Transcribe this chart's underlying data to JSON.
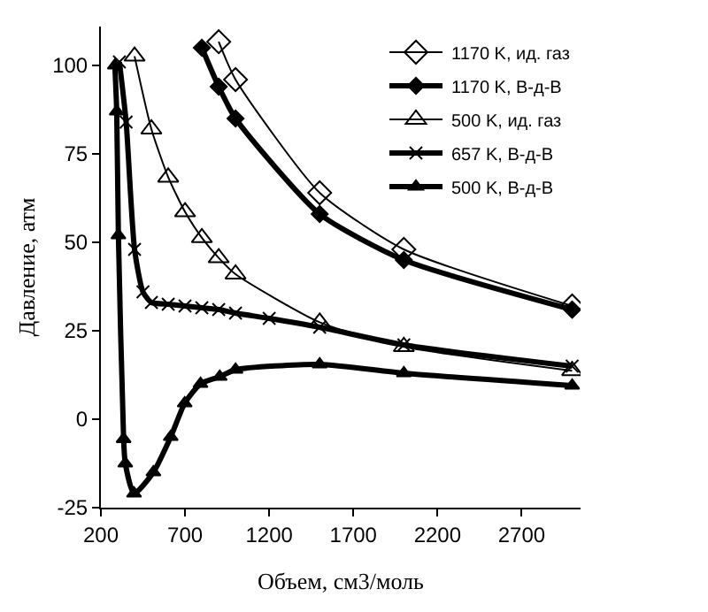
{
  "chart_data": {
    "type": "line",
    "xlabel": "Объем, см3/моль",
    "ylabel": "Давление, атм",
    "xlim": [
      200,
      3050
    ],
    "ylim": [
      -25,
      111
    ],
    "xticks": [
      200,
      700,
      1200,
      1700,
      2200,
      2700
    ],
    "yticks": [
      -25,
      0,
      25,
      50,
      75,
      100
    ],
    "legend": "top right",
    "line_style": "solid",
    "series": [
      {
        "name": "1170 K, ид. газ",
        "color": "#000000",
        "marker": "diamond-open",
        "x": [
          900,
          1000,
          1500,
          2000,
          3000
        ],
        "values": [
          106.7,
          96,
          64,
          48,
          32
        ]
      },
      {
        "name": "1170 K, В-д-В",
        "color": "#000000",
        "marker": "diamond",
        "x": [
          800,
          900,
          1000,
          1500,
          2000,
          3000
        ],
        "values": [
          105,
          94,
          85,
          58,
          45,
          31
        ]
      },
      {
        "name": "500 K, ид. газ",
        "color": "#000000",
        "marker": "triangle-open",
        "x": [
          400,
          500,
          600,
          700,
          800,
          900,
          1000,
          1500,
          2000,
          3000
        ],
        "values": [
          102.6,
          82,
          68.4,
          58.6,
          51.3,
          45.6,
          41,
          27.4,
          20.5,
          13.7
        ]
      },
      {
        "name": "657 K, В-д-В",
        "color": "#000000",
        "marker": "cross",
        "x": [
          310,
          350,
          400,
          450,
          500,
          600,
          700,
          800,
          900,
          1000,
          1200,
          1500,
          2000,
          3000
        ],
        "values": [
          101,
          84,
          48,
          36,
          33,
          32.5,
          32,
          31.5,
          31,
          30,
          28.5,
          26,
          21,
          15
        ]
      },
      {
        "name": "500 K, В-д-В",
        "color": "#000000",
        "marker": "triangle",
        "x": [
          283,
          294,
          304,
          335,
          345,
          397,
          512,
          615,
          698,
          792,
          906,
          1000,
          1500,
          2000,
          3000
        ],
        "values": [
          100,
          87,
          52,
          -5.6,
          -12.5,
          -21,
          -15,
          -5,
          4.5,
          10,
          12,
          14,
          15.5,
          13,
          9.5
        ]
      }
    ]
  }
}
